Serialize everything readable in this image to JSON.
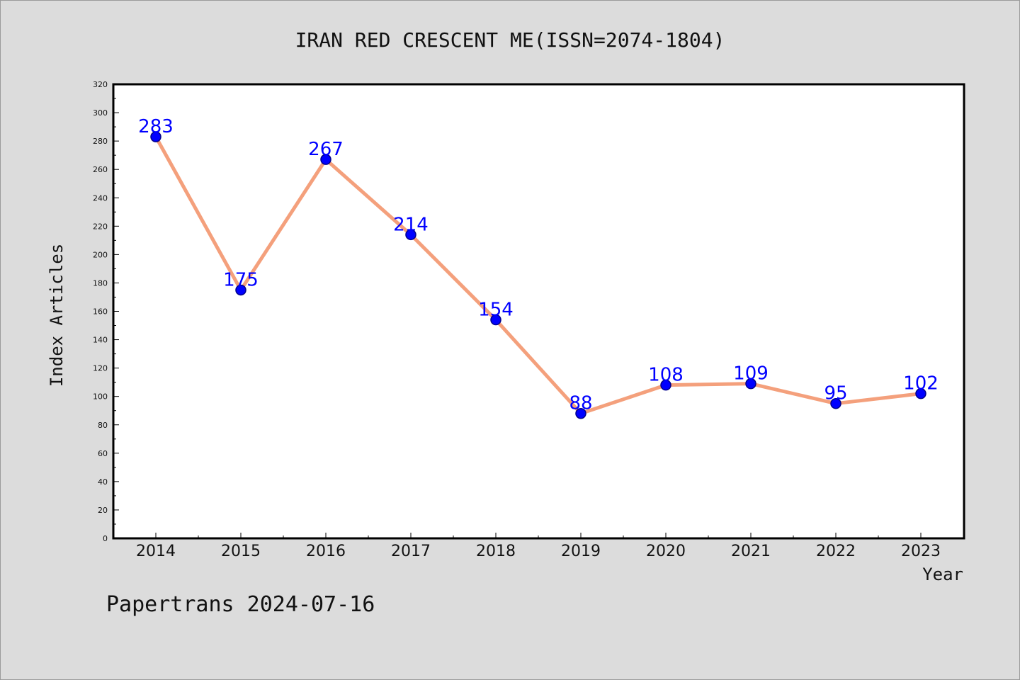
{
  "chart_data": {
    "type": "line",
    "title": "IRAN RED CRESCENT ME(ISSN=2074-1804)",
    "xlabel": "Year",
    "ylabel": "Index Articles",
    "categories": [
      "2014",
      "2015",
      "2016",
      "2017",
      "2018",
      "2019",
      "2020",
      "2021",
      "2022",
      "2023"
    ],
    "series": [
      {
        "values": [
          283,
          175,
          267,
          214,
          154,
          88,
          108,
          109,
          95,
          102
        ]
      }
    ],
    "ylim": [
      0,
      320
    ],
    "yticks": [
      0,
      20,
      40,
      60,
      80,
      100,
      120,
      140,
      160,
      180,
      200,
      220,
      240,
      260,
      280,
      300,
      320
    ],
    "grid": false,
    "data_labels": true,
    "colors": {
      "line": "#f4a07c",
      "marker": "#0000ff",
      "marker_edge": "#00008b",
      "label": "#0000ff",
      "plot_bg": "#ffffff",
      "page_bg": "#dcdcdc"
    }
  },
  "footer": "Papertrans 2024-07-16"
}
